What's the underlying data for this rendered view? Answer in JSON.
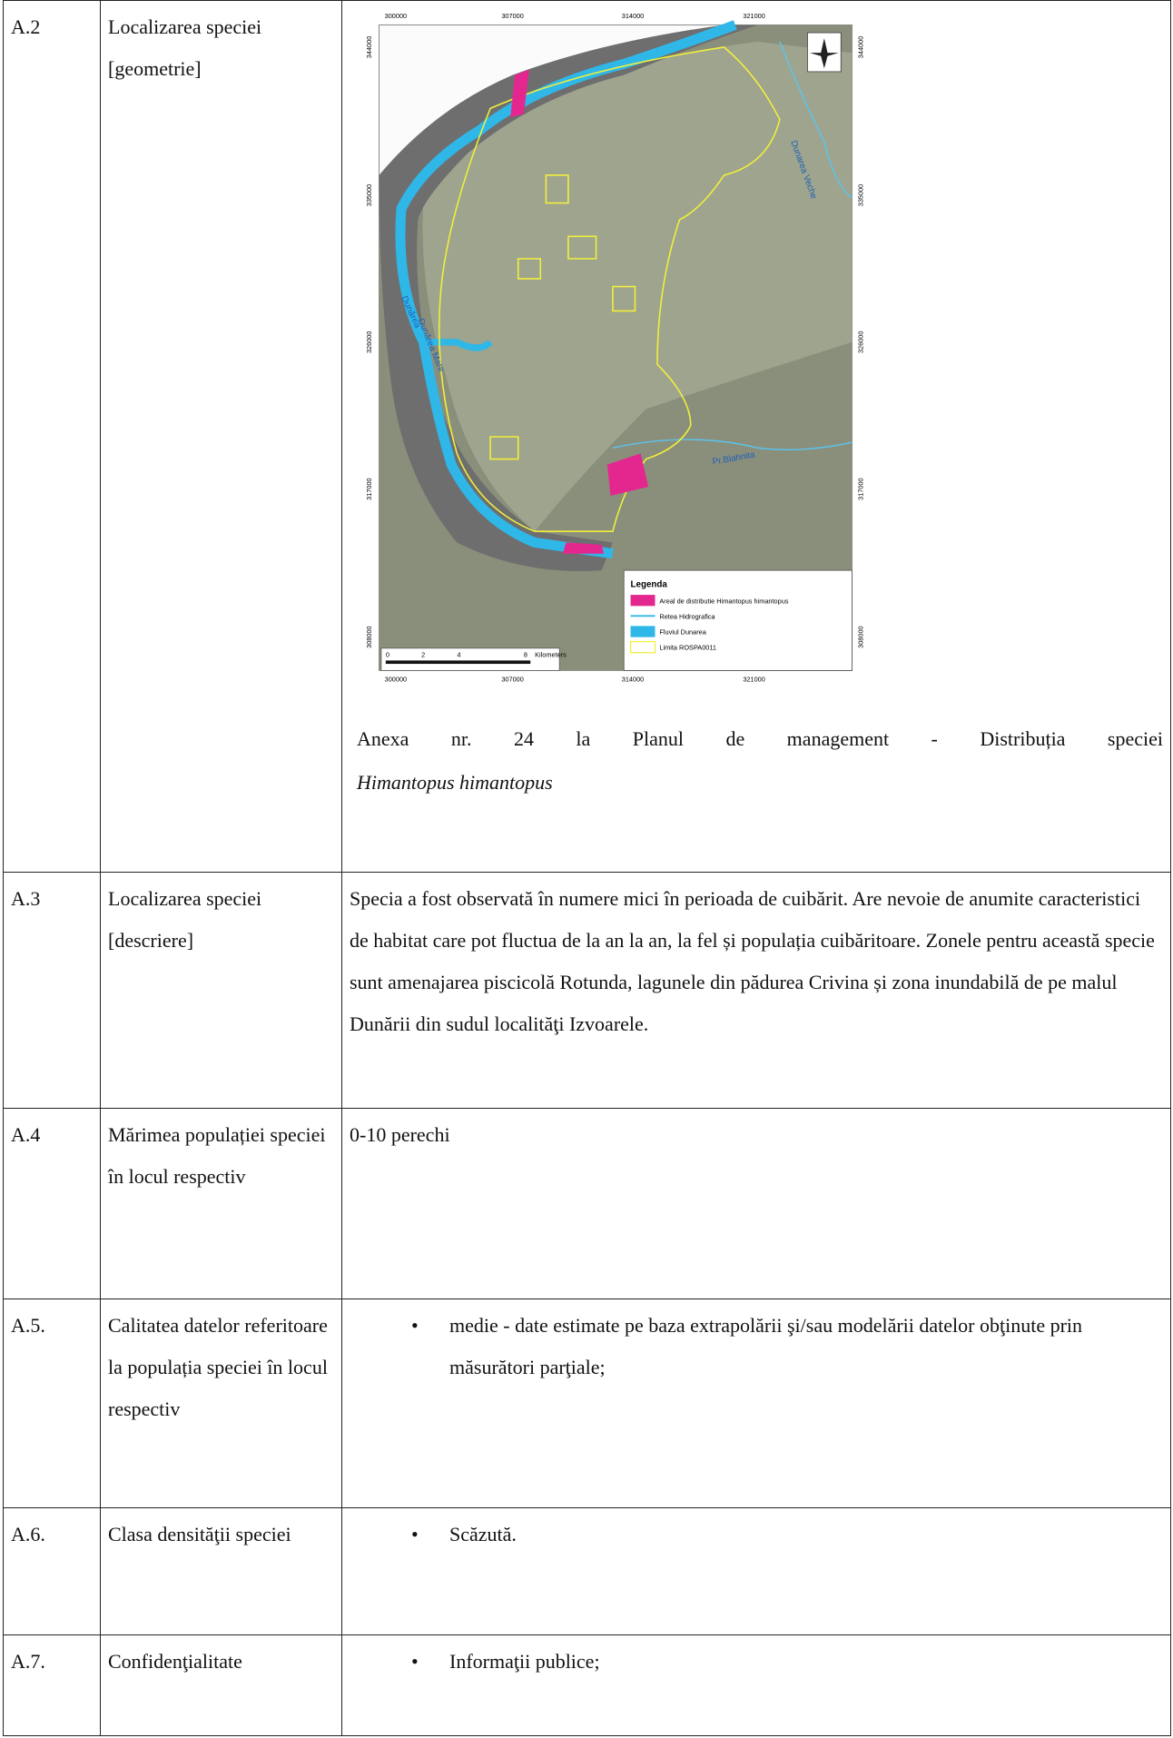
{
  "table": {
    "rows": [
      {
        "id": "A.2",
        "label": "Localizarea speciei [geometrie]",
        "map": {
          "x_ticks": [
            "300000",
            "307000",
            "314000",
            "321000"
          ],
          "y_ticks": [
            "344000",
            "335000",
            "326000",
            "317000",
            "308000"
          ],
          "legend_title": "Legenda",
          "legend": [
            "Areal de distributie Himantopus himantopus",
            "Retea Hidrografica",
            "Fluviul Dunarea",
            "Limita ROSPA0011"
          ],
          "scale": [
            "0",
            "2",
            "4",
            "8",
            "Kilometers"
          ],
          "labels": [
            "Dunărea",
            "Dunărea Mare",
            "Pr.Blahnita",
            "Dunarea Veche"
          ]
        },
        "caption": "Anexa nr. 24 la Planul de management - Distribuția speciei",
        "caption_italic": "Himantopus himantopus"
      },
      {
        "id": "A.3",
        "label": "Localizarea speciei [descriere]",
        "text": "Specia a fost observată în numere mici în perioada de cuibărit. Are nevoie de anumite caracteristici de habitat care pot fluctua de la an la an, la fel și populația cuibăritoare. Zonele pentru această specie sunt amenajarea piscicolă Rotunda, lagunele din pădurea Crivina și zona inundabilă de pe malul Dunării din sudul localităţi Izvoarele."
      },
      {
        "id": "A.4",
        "label": "Mărimea populației speciei în locul respectiv",
        "text": "0-10 perechi"
      },
      {
        "id": "A.5.",
        "label": "Calitatea datelor referitoare la populația speciei în locul respectiv",
        "bullets": [
          "medie - date estimate pe baza extrapolării şi/sau modelării datelor obţinute prin măsurători parţiale;"
        ]
      },
      {
        "id": "A.6.",
        "label": "Clasa densităţii speciei",
        "bullets": [
          "Scăzută."
        ]
      },
      {
        "id": "A.7.",
        "label": "Confidenţialitate",
        "bullets": [
          "Informaţii publice;"
        ]
      }
    ]
  }
}
